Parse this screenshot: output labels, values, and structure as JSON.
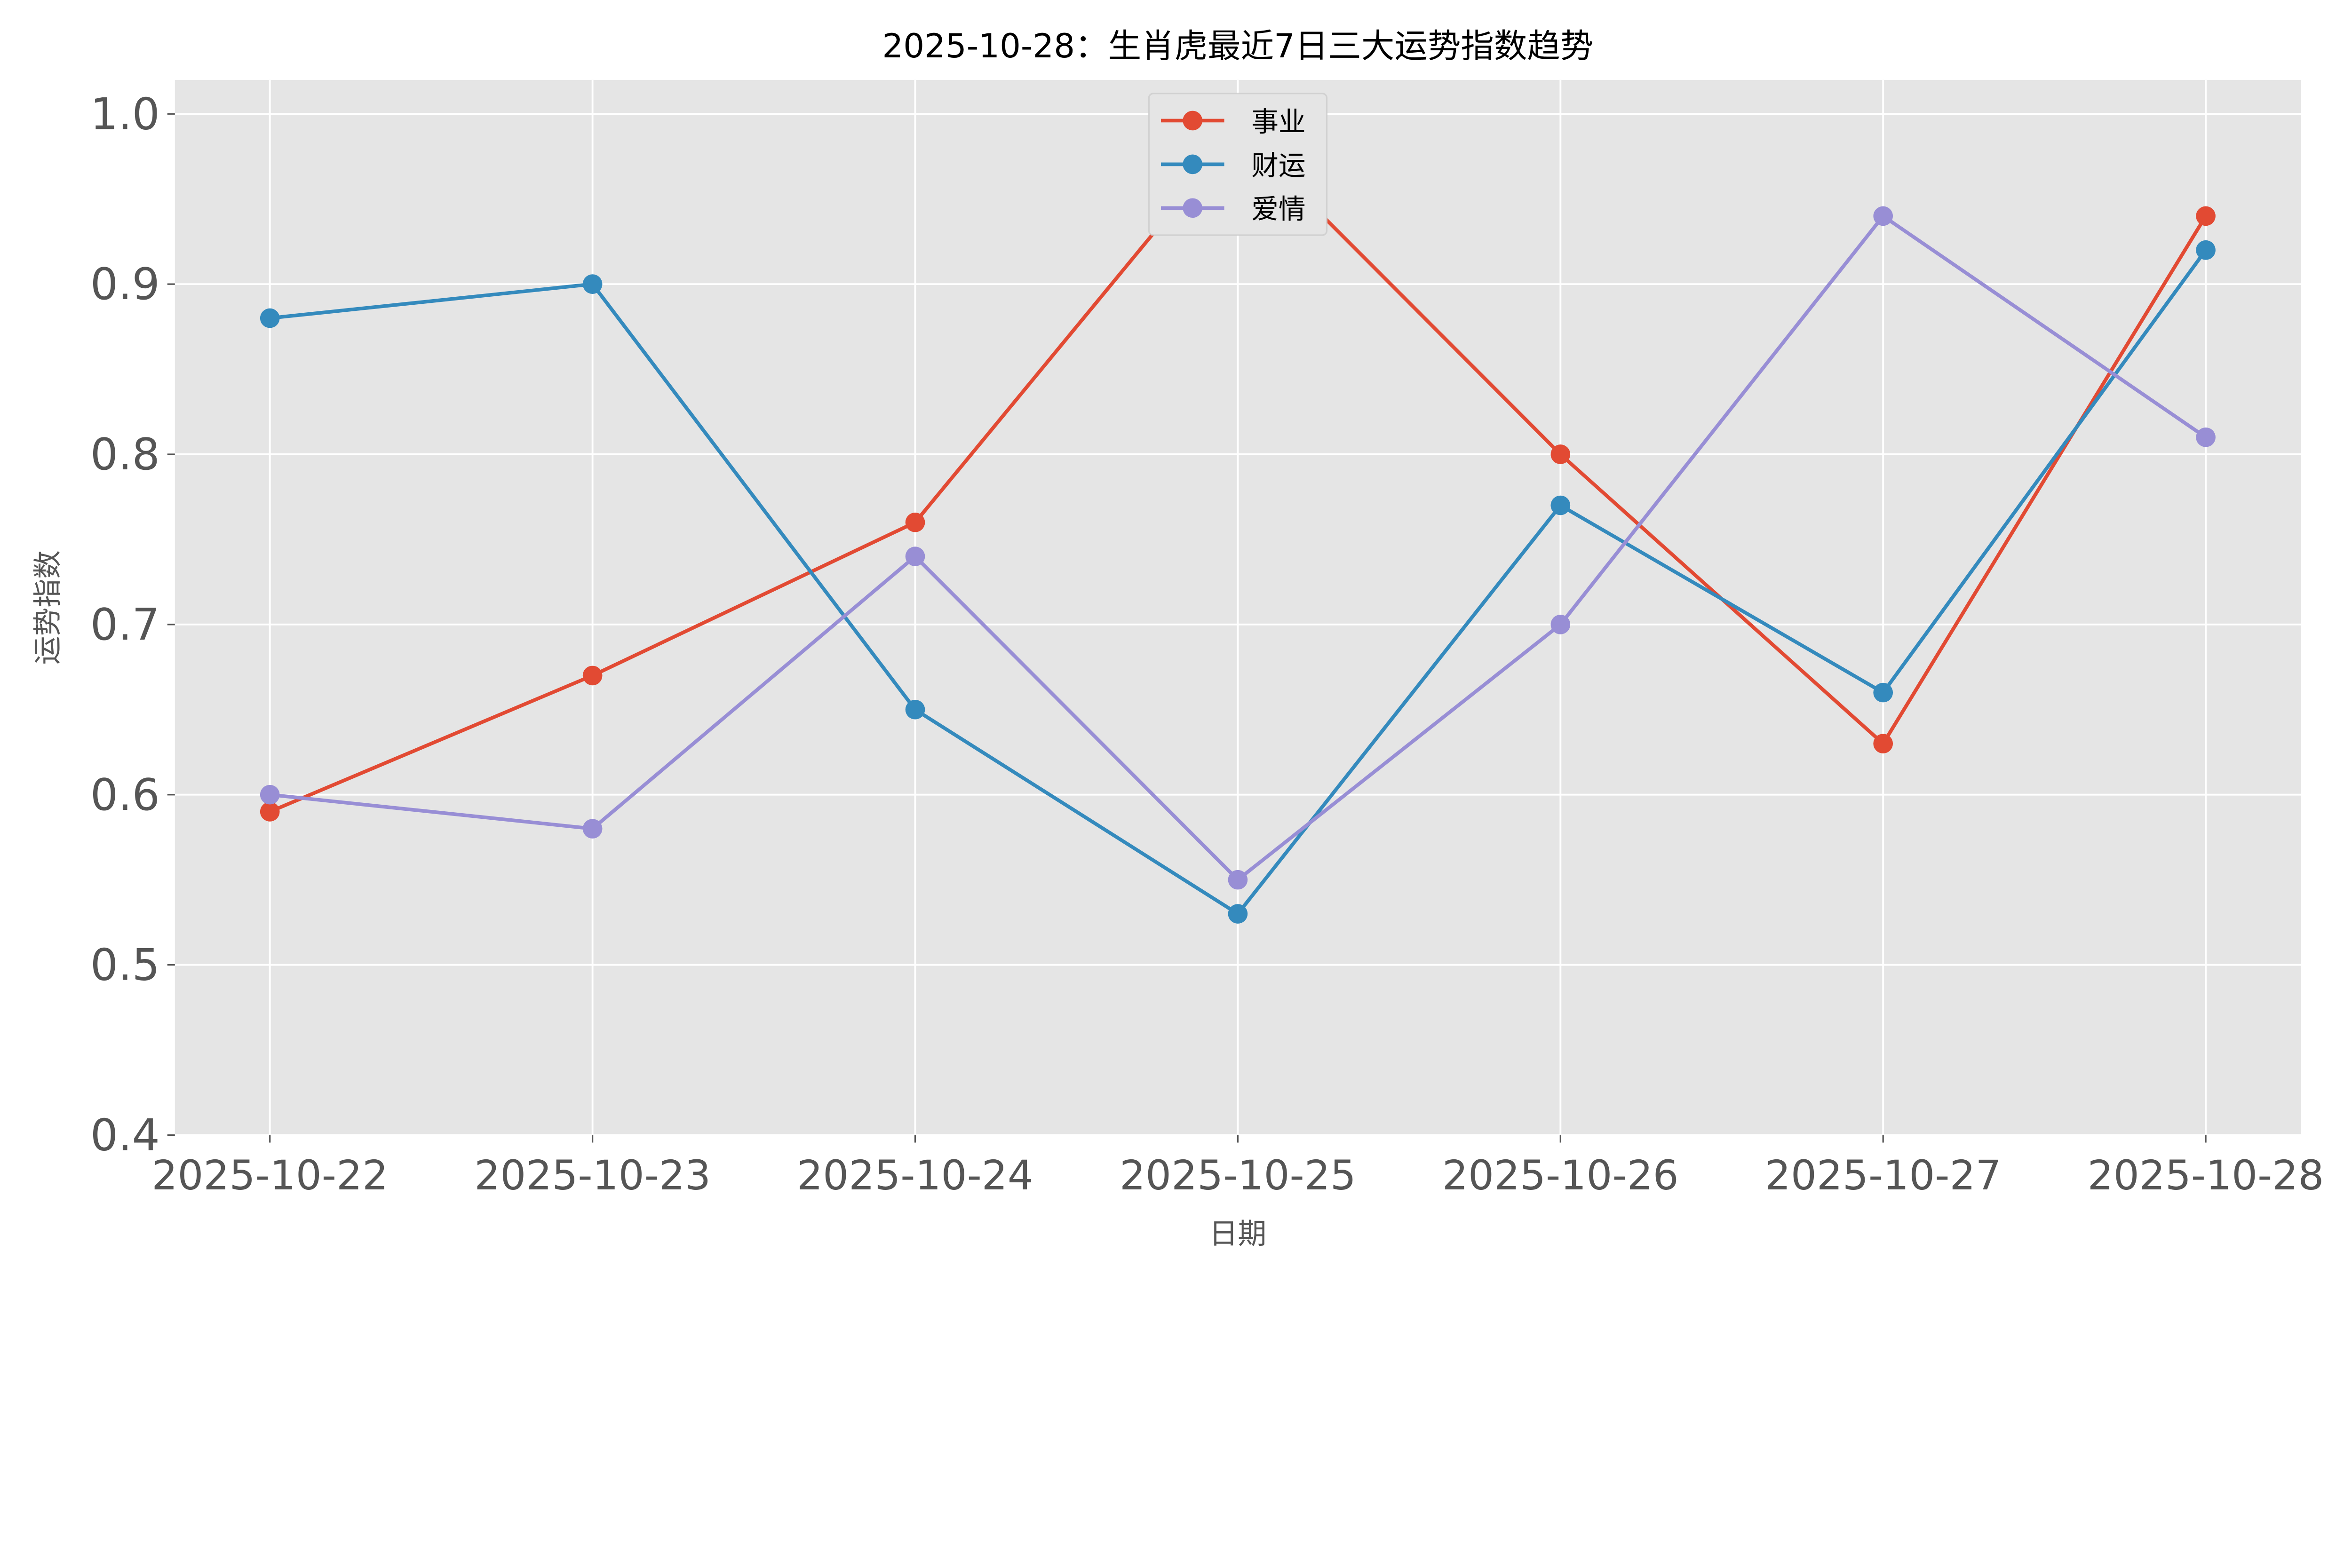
{
  "chart_data": {
    "type": "line",
    "title": "2025-10-28：生肖虎最近7日三大运势指数趋势",
    "xlabel": "日期",
    "ylabel": "运势指数",
    "categories": [
      "2025-10-22",
      "2025-10-23",
      "2025-10-24",
      "2025-10-25",
      "2025-10-26",
      "2025-10-27",
      "2025-10-28"
    ],
    "ylim": [
      0.4,
      1.02
    ],
    "yticks": [
      0.4,
      0.5,
      0.6,
      0.7,
      0.8,
      0.9,
      1.0
    ],
    "ytick_labels": [
      "0.4",
      "0.5",
      "0.6",
      "0.7",
      "0.8",
      "0.9",
      "1.0"
    ],
    "grid": true,
    "legend_position": "top-center",
    "series": [
      {
        "name": "事业",
        "color": "#E24A33",
        "values": [
          0.59,
          0.67,
          0.76,
          0.99,
          0.8,
          0.63,
          0.94
        ]
      },
      {
        "name": "财运",
        "color": "#348ABD",
        "values": [
          0.88,
          0.9,
          0.65,
          0.53,
          0.77,
          0.66,
          0.92
        ]
      },
      {
        "name": "爱情",
        "color": "#988ED5",
        "values": [
          0.6,
          0.58,
          0.74,
          0.55,
          0.7,
          0.94,
          0.81
        ]
      }
    ]
  }
}
